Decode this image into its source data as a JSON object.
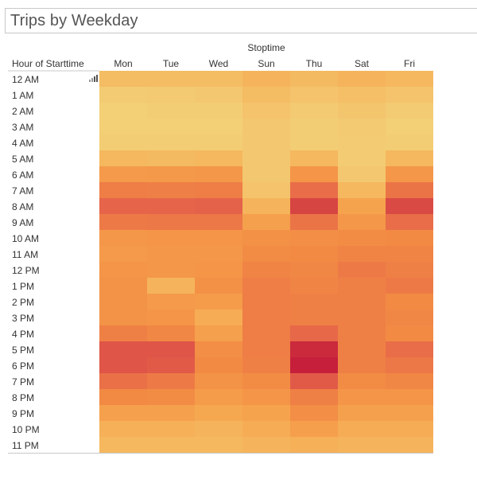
{
  "title": "Trips by Weekday",
  "colors": {
    "background": "#ffffff",
    "text": "#333333",
    "divider": "#c8c8c8",
    "scale": [
      "#f2d77e",
      "#f6a64e",
      "#f28a44",
      "#e5624a",
      "#c61f3b"
    ]
  },
  "chart_data": {
    "type": "heatmap",
    "title": "Trips by Weekday",
    "xlabel": "Stoptime",
    "ylabel": "Hour of Starttime",
    "columns": [
      "Mon",
      "Tue",
      "Wed",
      "Sun",
      "Thu",
      "Sat",
      "Fri"
    ],
    "rows": [
      "12 AM",
      "1 AM",
      "2 AM",
      "3 AM",
      "4 AM",
      "5 AM",
      "6 AM",
      "7 AM",
      "8 AM",
      "9 AM",
      "10 AM",
      "11 AM",
      "12 PM",
      "1 PM",
      "2 PM",
      "3 PM",
      "4 PM",
      "5 PM",
      "6 PM",
      "7 PM",
      "8 PM",
      "9 PM",
      "10 PM",
      "11 PM"
    ],
    "values": [
      [
        0.14,
        0.14,
        0.14,
        0.18,
        0.15,
        0.18,
        0.16
      ],
      [
        0.06,
        0.07,
        0.08,
        0.14,
        0.1,
        0.12,
        0.1
      ],
      [
        0.04,
        0.05,
        0.05,
        0.1,
        0.07,
        0.09,
        0.06
      ],
      [
        0.04,
        0.04,
        0.04,
        0.08,
        0.05,
        0.07,
        0.04
      ],
      [
        0.05,
        0.05,
        0.05,
        0.08,
        0.05,
        0.06,
        0.05
      ],
      [
        0.16,
        0.15,
        0.16,
        0.08,
        0.16,
        0.06,
        0.16
      ],
      [
        0.36,
        0.37,
        0.38,
        0.08,
        0.4,
        0.08,
        0.38
      ],
      [
        0.58,
        0.57,
        0.58,
        0.1,
        0.68,
        0.16,
        0.64
      ],
      [
        0.74,
        0.73,
        0.75,
        0.18,
        0.86,
        0.28,
        0.84
      ],
      [
        0.6,
        0.62,
        0.62,
        0.3,
        0.64,
        0.38,
        0.68
      ],
      [
        0.38,
        0.4,
        0.4,
        0.44,
        0.46,
        0.48,
        0.5
      ],
      [
        0.36,
        0.38,
        0.38,
        0.48,
        0.5,
        0.54,
        0.54
      ],
      [
        0.4,
        0.38,
        0.4,
        0.54,
        0.52,
        0.6,
        0.56
      ],
      [
        0.42,
        0.18,
        0.44,
        0.58,
        0.54,
        0.56,
        0.6
      ],
      [
        0.42,
        0.36,
        0.34,
        0.58,
        0.56,
        0.56,
        0.5
      ],
      [
        0.42,
        0.4,
        0.22,
        0.58,
        0.56,
        0.56,
        0.52
      ],
      [
        0.56,
        0.52,
        0.3,
        0.58,
        0.72,
        0.56,
        0.5
      ],
      [
        0.8,
        0.8,
        0.46,
        0.58,
        0.96,
        0.56,
        0.68
      ],
      [
        0.8,
        0.78,
        0.5,
        0.56,
        1.0,
        0.56,
        0.62
      ],
      [
        0.66,
        0.6,
        0.42,
        0.48,
        0.78,
        0.48,
        0.52
      ],
      [
        0.5,
        0.48,
        0.34,
        0.4,
        0.56,
        0.4,
        0.4
      ],
      [
        0.3,
        0.3,
        0.24,
        0.28,
        0.46,
        0.3,
        0.3
      ],
      [
        0.2,
        0.2,
        0.18,
        0.22,
        0.32,
        0.22,
        0.22
      ],
      [
        0.16,
        0.16,
        0.16,
        0.18,
        0.2,
        0.18,
        0.18
      ]
    ],
    "grid": false,
    "legend": "none",
    "scale_note": "relative intensity 0 (pale yellow) to 1 (dark red)"
  },
  "icons": {
    "row_menu": "bar-chart-icon"
  }
}
